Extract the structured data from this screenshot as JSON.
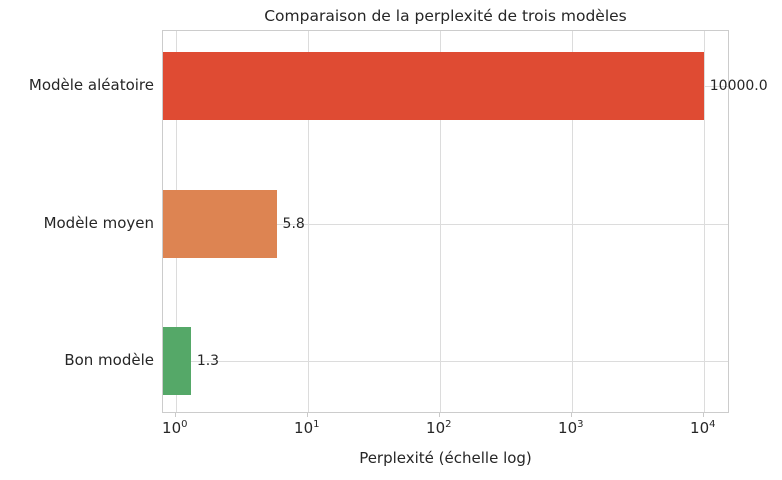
{
  "chart_data": {
    "type": "bar",
    "orientation": "horizontal",
    "title": "Comparaison de la perplexité de trois modèles",
    "xlabel": "Perplexité (échelle log)",
    "ylabel": "",
    "categories": [
      "Modèle aléatoire",
      "Modèle moyen",
      "Bon modèle"
    ],
    "values": [
      10000.0,
      5.8,
      1.3
    ],
    "value_labels": [
      "10000.0",
      "5.8",
      "1.3"
    ],
    "bar_colors": [
      "#df4b33",
      "#dd8452",
      "#55a868"
    ],
    "xscale": "log",
    "xlim": [
      0.8,
      15800
    ],
    "xtick_values": [
      1,
      10,
      100,
      1000,
      10000
    ],
    "xtick_base": "10",
    "xtick_exponents": [
      "0",
      "1",
      "2",
      "3",
      "4"
    ],
    "grid": true,
    "legend": null,
    "colors": {
      "grid": "#dcdcdc",
      "border": "#cccccc",
      "text": "#262626",
      "background": "#ffffff"
    }
  }
}
